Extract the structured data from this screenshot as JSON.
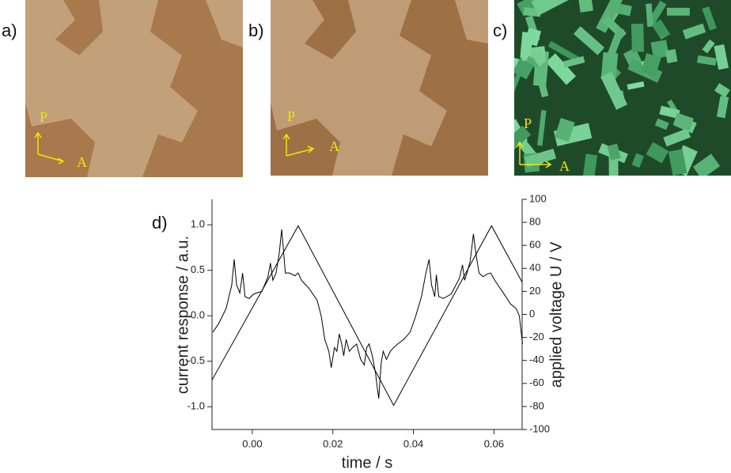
{
  "panels": [
    {
      "label": "a)",
      "polarizer": "P",
      "analyzer": "A"
    },
    {
      "label": "b)",
      "polarizer": "P",
      "analyzer": "A"
    },
    {
      "label": "c)",
      "polarizer": "P",
      "analyzer": "A"
    }
  ],
  "chart_data": {
    "type": "line",
    "label": "d)",
    "xlabel": "time / s",
    "ylabel": "current response / a.u.",
    "y2label": "applied voltage U / V",
    "xlim": [
      -0.01,
      0.067
    ],
    "xticks": [
      {
        "value": 0,
        "label": "0.00"
      },
      0.02,
      0.04,
      0.06
    ],
    "ylim": [
      -1.25,
      1.28
    ],
    "yticks": [
      {
        "value": -1,
        "label": "-1.0"
      },
      -0.5,
      {
        "value": 0,
        "label": "0.0"
      },
      0.5,
      {
        "value": 1,
        "label": "1.0"
      }
    ],
    "y2lim": [
      -100,
      100
    ],
    "y2ticks": [
      -100,
      -80,
      -60,
      -40,
      -20,
      0,
      20,
      40,
      60,
      80,
      100
    ],
    "grid": false,
    "series": [
      {
        "color": "#000000",
        "x": [
          -0.0098,
          -0.0084,
          -0.0065,
          -0.0051,
          -0.0045,
          -0.0039,
          -0.0031,
          -0.0024,
          -0.0018,
          -0.0008,
          0.0004,
          0.0024,
          0.0039,
          0.0045,
          0.0051,
          0.0059,
          0.0067,
          0.0073,
          0.0078,
          0.0082,
          0.0092,
          0.0106,
          0.0114,
          0.0122,
          0.0141,
          0.0161,
          0.0171,
          0.018,
          0.019,
          0.0196,
          0.0204,
          0.021,
          0.0216,
          0.0222,
          0.0227,
          0.0233,
          0.0241,
          0.0249,
          0.0259,
          0.0269,
          0.0278,
          0.0284,
          0.029,
          0.0298,
          0.0306,
          0.031,
          0.0314,
          0.032,
          0.0325,
          0.0333,
          0.0343,
          0.0351,
          0.0361,
          0.0376,
          0.0392,
          0.0406,
          0.042,
          0.0431,
          0.0439,
          0.0445,
          0.0453,
          0.0457,
          0.0463,
          0.0475,
          0.0494,
          0.0514,
          0.0522,
          0.0527,
          0.0533,
          0.0541,
          0.0549,
          0.0555,
          0.0563,
          0.0573,
          0.0584,
          0.0592,
          0.0602,
          0.0622,
          0.0641,
          0.0655,
          0.0663,
          0.0671
        ],
        "values": [
          -0.18,
          -0.09,
          0.08,
          0.34,
          0.62,
          0.34,
          0.25,
          0.47,
          0.21,
          0.19,
          0.24,
          0.27,
          0.43,
          0.58,
          0.39,
          0.47,
          0.69,
          0.95,
          0.69,
          0.47,
          0.47,
          0.44,
          0.47,
          0.39,
          0.3,
          0.17,
          0,
          -0.26,
          -0.39,
          -0.57,
          -0.35,
          -0.39,
          -0.2,
          -0.31,
          -0.44,
          -0.26,
          -0.39,
          -0.35,
          -0.31,
          -0.48,
          -0.54,
          -0.35,
          -0.31,
          -0.44,
          -0.63,
          -0.78,
          -0.91,
          -0.52,
          -0.39,
          -0.48,
          -0.39,
          -0.35,
          -0.31,
          -0.26,
          -0.18,
          0,
          0.21,
          0.47,
          0.62,
          0.34,
          0.21,
          0.45,
          0.21,
          0.19,
          0.24,
          0.41,
          0.56,
          0.39,
          0.47,
          0.6,
          0.9,
          0.69,
          0.47,
          0.43,
          0.46,
          0.47,
          0.39,
          0.26,
          0.13,
          0.08,
          0,
          -0.31
        ]
      },
      {
        "color": "#000000",
        "axis": "y2",
        "x": [
          -0.01,
          0.0114,
          0.0351,
          0.0594,
          0.067
        ],
        "values": [
          -57,
          77,
          -79,
          77,
          28
        ]
      }
    ]
  }
}
